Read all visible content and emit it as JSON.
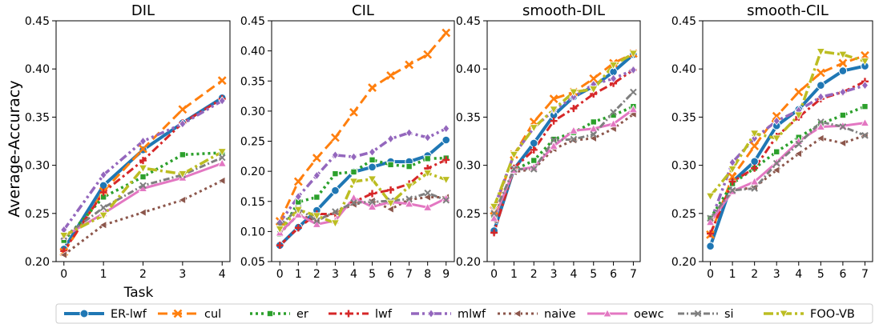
{
  "figure": {
    "ylabel": "Average-Accuracy",
    "xlabel": "Task"
  },
  "series_styles": [
    {
      "name": "ER-lwf",
      "color": "#1f77b4",
      "dash": "",
      "marker": "circle",
      "width": 4
    },
    {
      "name": "cul",
      "color": "#ff7f0e",
      "dash": "12,6",
      "marker": "x",
      "width": 3
    },
    {
      "name": "er",
      "color": "#2ca02c",
      "dash": "3,4",
      "marker": "square",
      "width": 3.5
    },
    {
      "name": "lwf",
      "color": "#d62728",
      "dash": "10,4,3,4",
      "marker": "plus",
      "width": 3
    },
    {
      "name": "mlwf",
      "color": "#9467bd",
      "dash": "10,4,3,4,3,4",
      "marker": "diamond",
      "width": 3.5
    },
    {
      "name": "naive",
      "color": "#8c564b",
      "dash": "3,4",
      "marker": "tri_left",
      "width": 3
    },
    {
      "name": "oewc",
      "color": "#e377c2",
      "dash": "",
      "marker": "triangle",
      "width": 3
    },
    {
      "name": "si",
      "color": "#7f7f7f",
      "dash": "8,3,2,3",
      "marker": "xsmall",
      "width": 3
    },
    {
      "name": "FOO-VB",
      "color": "#bcbd22",
      "dash": "12,4,3,4",
      "marker": "tri_down",
      "width": 3.5
    }
  ],
  "legend": {
    "placement": "bottom",
    "entries": [
      "ER-lwf",
      "cul",
      "er",
      "lwf",
      "mlwf",
      "naive",
      "oewc",
      "si",
      "FOO-VB"
    ]
  },
  "chart_data": [
    {
      "type": "line",
      "title": "DIL",
      "x": [
        0,
        1,
        2,
        3,
        4
      ],
      "ylim": [
        0.2,
        0.45
      ],
      "yticks": [
        "0.20",
        "0.25",
        "0.30",
        "0.35",
        "0.40",
        "0.45"
      ],
      "series": [
        {
          "name": "ER-lwf",
          "values": [
            0.213,
            0.279,
            0.316,
            0.344,
            0.37
          ]
        },
        {
          "name": "cul",
          "values": [
            0.21,
            0.273,
            0.317,
            0.358,
            0.388
          ]
        },
        {
          "name": "er",
          "values": [
            0.222,
            0.267,
            0.288,
            0.311,
            0.313
          ]
        },
        {
          "name": "lwf",
          "values": [
            0.211,
            0.272,
            0.305,
            0.344,
            0.369
          ]
        },
        {
          "name": "mlwf",
          "values": [
            0.233,
            0.29,
            0.325,
            0.343,
            0.367
          ]
        },
        {
          "name": "naive",
          "values": [
            0.207,
            0.238,
            0.251,
            0.264,
            0.284
          ]
        },
        {
          "name": "oewc",
          "values": [
            0.226,
            0.25,
            0.276,
            0.287,
            0.302
          ]
        },
        {
          "name": "si",
          "values": [
            0.226,
            0.256,
            0.279,
            0.29,
            0.308
          ]
        },
        {
          "name": "FOO-VB",
          "values": [
            0.227,
            0.248,
            0.297,
            0.291,
            0.314
          ]
        }
      ]
    },
    {
      "type": "line",
      "title": "CIL",
      "x": [
        0,
        1,
        2,
        3,
        4,
        5,
        6,
        7,
        8,
        9
      ],
      "ylim": [
        0.05,
        0.45
      ],
      "yticks": [
        "0.05",
        "0.10",
        "0.15",
        "0.20",
        "0.25",
        "0.30",
        "0.35",
        "0.40",
        "0.45"
      ],
      "series": [
        {
          "name": "ER-lwf",
          "values": [
            0.077,
            0.107,
            0.135,
            0.168,
            0.199,
            0.207,
            0.216,
            0.216,
            0.226,
            0.252
          ]
        },
        {
          "name": "cul",
          "values": [
            0.117,
            0.183,
            0.222,
            0.256,
            0.298,
            0.339,
            0.359,
            0.377,
            0.394,
            0.43
          ]
        },
        {
          "name": "er",
          "values": [
            0.096,
            0.149,
            0.157,
            0.196,
            0.199,
            0.219,
            0.211,
            0.208,
            0.221,
            0.222
          ]
        },
        {
          "name": "lwf",
          "values": [
            0.077,
            0.106,
            0.129,
            0.129,
            0.149,
            0.163,
            0.169,
            0.179,
            0.205,
            0.219
          ]
        },
        {
          "name": "mlwf",
          "values": [
            0.115,
            0.158,
            0.193,
            0.227,
            0.224,
            0.232,
            0.254,
            0.264,
            0.256,
            0.271
          ]
        },
        {
          "name": "naive",
          "values": [
            0.097,
            0.128,
            0.118,
            0.132,
            0.145,
            0.151,
            0.137,
            0.153,
            0.157,
            0.157
          ]
        },
        {
          "name": "oewc",
          "values": [
            0.098,
            0.128,
            0.112,
            0.118,
            0.156,
            0.141,
            0.149,
            0.146,
            0.14,
            0.155
          ]
        },
        {
          "name": "si",
          "values": [
            0.11,
            0.138,
            0.118,
            0.133,
            0.148,
            0.149,
            0.151,
            0.154,
            0.164,
            0.152
          ]
        },
        {
          "name": "FOO-VB",
          "values": [
            0.104,
            0.136,
            0.126,
            0.114,
            0.183,
            0.187,
            0.147,
            0.175,
            0.197,
            0.186
          ]
        }
      ]
    },
    {
      "type": "line",
      "title": "smooth-DIL",
      "x": [
        0,
        1,
        2,
        3,
        4,
        5,
        6,
        7
      ],
      "ylim": [
        0.2,
        0.45
      ],
      "yticks": [
        "0.20",
        "0.25",
        "0.30",
        "0.35",
        "0.40",
        "0.45"
      ],
      "series": [
        {
          "name": "ER-lwf",
          "values": [
            0.232,
            0.296,
            0.323,
            0.352,
            0.371,
            0.382,
            0.397,
            0.415
          ]
        },
        {
          "name": "cul",
          "values": [
            0.253,
            0.311,
            0.345,
            0.369,
            0.376,
            0.39,
            0.406,
            0.416
          ]
        },
        {
          "name": "er",
          "values": [
            0.245,
            0.295,
            0.305,
            0.327,
            0.334,
            0.345,
            0.352,
            0.361
          ]
        },
        {
          "name": "lwf",
          "values": [
            0.23,
            0.297,
            0.316,
            0.346,
            0.359,
            0.374,
            0.385,
            0.399
          ]
        },
        {
          "name": "mlwf",
          "values": [
            0.256,
            0.311,
            0.339,
            0.357,
            0.371,
            0.384,
            0.39,
            0.399
          ]
        },
        {
          "name": "naive",
          "values": [
            0.243,
            0.293,
            0.296,
            0.317,
            0.326,
            0.328,
            0.338,
            0.353
          ]
        },
        {
          "name": "oewc",
          "values": [
            0.245,
            0.295,
            0.298,
            0.32,
            0.336,
            0.338,
            0.343,
            0.358
          ]
        },
        {
          "name": "si",
          "values": [
            0.25,
            0.296,
            0.296,
            0.326,
            0.327,
            0.332,
            0.355,
            0.376
          ]
        },
        {
          "name": "FOO-VB",
          "values": [
            0.257,
            0.311,
            0.339,
            0.358,
            0.376,
            0.379,
            0.404,
            0.416
          ]
        }
      ]
    },
    {
      "type": "line",
      "title": "smooth-CIL",
      "x": [
        0,
        1,
        2,
        3,
        4,
        5,
        6,
        7
      ],
      "ylim": [
        0.2,
        0.45
      ],
      "yticks": [
        "0.20",
        "0.25",
        "0.30",
        "0.35",
        "0.40",
        "0.45"
      ],
      "series": [
        {
          "name": "ER-lwf",
          "values": [
            0.216,
            0.283,
            0.304,
            0.341,
            0.358,
            0.383,
            0.398,
            0.403
          ]
        },
        {
          "name": "cul",
          "values": [
            0.228,
            0.288,
            0.32,
            0.351,
            0.376,
            0.396,
            0.406,
            0.414
          ]
        },
        {
          "name": "er",
          "values": [
            0.245,
            0.281,
            0.297,
            0.314,
            0.329,
            0.343,
            0.352,
            0.361
          ]
        },
        {
          "name": "lwf",
          "values": [
            0.229,
            0.283,
            0.297,
            0.33,
            0.35,
            0.369,
            0.376,
            0.387
          ]
        },
        {
          "name": "mlwf",
          "values": [
            0.241,
            0.303,
            0.328,
            0.346,
            0.357,
            0.371,
            0.376,
            0.383
          ]
        },
        {
          "name": "naive",
          "values": [
            0.242,
            0.274,
            0.277,
            0.295,
            0.312,
            0.328,
            0.323,
            0.331
          ]
        },
        {
          "name": "oewc",
          "values": [
            0.241,
            0.273,
            0.283,
            0.303,
            0.325,
            0.34,
            0.341,
            0.344
          ]
        },
        {
          "name": "si",
          "values": [
            0.245,
            0.274,
            0.276,
            0.302,
            0.322,
            0.345,
            0.34,
            0.331
          ]
        },
        {
          "name": "FOO-VB",
          "values": [
            0.268,
            0.296,
            0.333,
            0.328,
            0.352,
            0.418,
            0.415,
            0.408
          ]
        }
      ]
    }
  ]
}
